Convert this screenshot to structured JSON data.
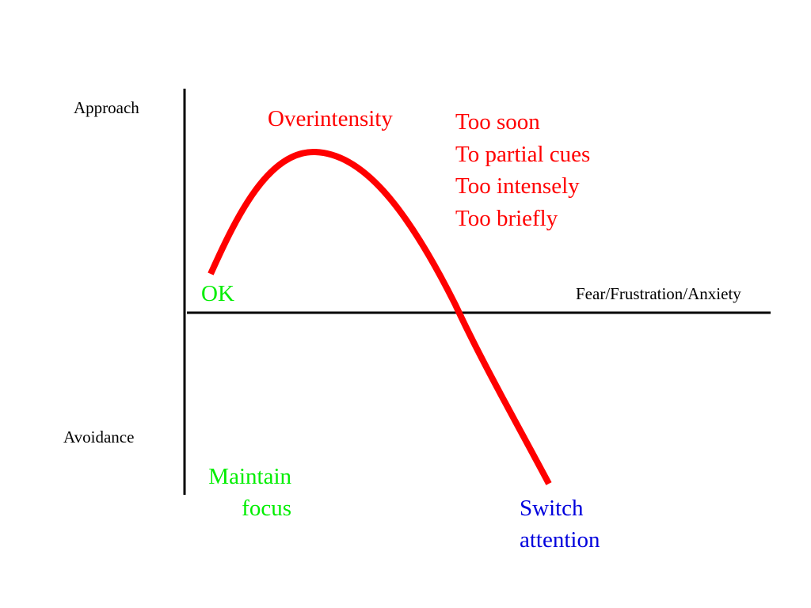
{
  "axes": {
    "y_top_label": "Approach",
    "y_bottom_label": "Avoidance",
    "x_label": "Fear/Frustration/Anxiety"
  },
  "curve": {
    "peak_label": "Overintensity",
    "start_label": "OK",
    "end_label": {
      "lines": [
        "Switch",
        "attention"
      ]
    },
    "color": "#ff0000"
  },
  "overintensity_causes": {
    "items": [
      "Too soon",
      "To partial cues",
      "Too intensely",
      "Too briefly"
    ]
  },
  "bottom_left_note": {
    "lines": [
      "Maintain",
      "focus"
    ]
  },
  "colors": {
    "red": "#ff0000",
    "green": "#00ee00",
    "blue": "#0000dd",
    "axis": "#000000"
  }
}
